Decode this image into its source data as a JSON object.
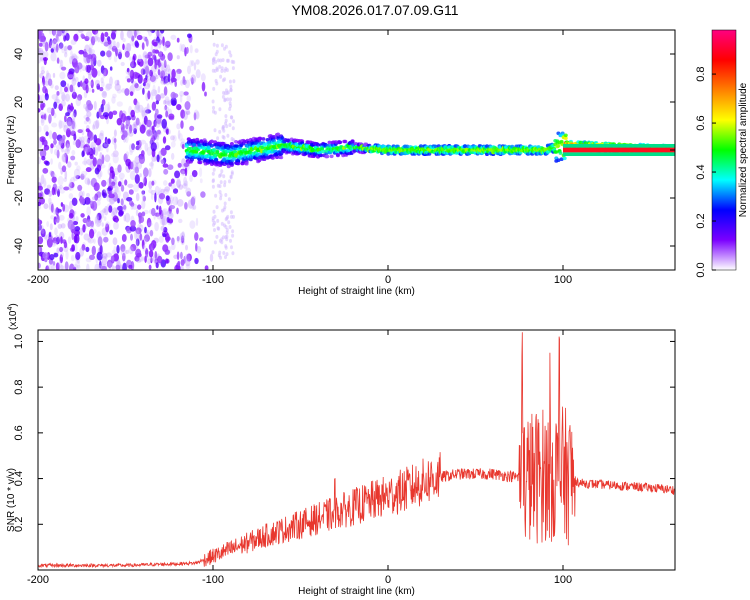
{
  "title": "YM08.2026.017.07.09.G11",
  "colors": {
    "snr_line": "#e8372e",
    "frame": "#000000"
  },
  "chart_data": [
    {
      "type": "heatmap",
      "title": "YM08.2026.017.07.09.G11",
      "xlabel": "Height of straight line (km)",
      "ylabel": "Frequency (Hz)",
      "xlim": [
        -200,
        164
      ],
      "ylim": [
        -50,
        50
      ],
      "xticks": [
        -200,
        -100,
        0,
        100
      ],
      "yticks": [
        -40,
        -20,
        0,
        20,
        40
      ],
      "colorbar": {
        "label": "Normalized spectral amplitude",
        "range": [
          0,
          1
        ],
        "ticks": [
          "0.0",
          "0.2",
          "0.4",
          "0.6",
          "0.8"
        ],
        "colors": [
          "#ffffff",
          "#7b00ff",
          "#0000ff",
          "#00ffff",
          "#00ff00",
          "#ffff00",
          "#ff8000",
          "#ff0000",
          "#ff0080"
        ]
      },
      "description_points": {
        "noise_region_x": [
          -200,
          -100
        ],
        "signal_track": [
          [
            -115,
            0
          ],
          [
            -90,
            -2
          ],
          [
            -60,
            2
          ],
          [
            -40,
            0
          ],
          [
            -20,
            1
          ],
          [
            0,
            0
          ],
          [
            50,
            0
          ],
          [
            90,
            0
          ],
          [
            100,
            2
          ],
          [
            164,
            0
          ]
        ]
      }
    },
    {
      "type": "line",
      "xlabel": "Height of straight line (km)",
      "ylabel": "SNR (10 * v/v)",
      "yscale_label": "(x10",
      "yscale_exp": "4",
      "xlim": [
        -200,
        164
      ],
      "ylim": [
        0,
        1.05
      ],
      "xticks": [
        -200,
        -100,
        0,
        100
      ],
      "yticks": [
        0.2,
        0.4,
        0.6,
        0.8,
        1.0
      ],
      "envelope": [
        [
          -200,
          0.02
        ],
        [
          -150,
          0.02
        ],
        [
          -110,
          0.03
        ],
        [
          -100,
          0.06
        ],
        [
          -90,
          0.09
        ],
        [
          -70,
          0.15
        ],
        [
          -50,
          0.2
        ],
        [
          -30,
          0.25
        ],
        [
          -10,
          0.3
        ],
        [
          10,
          0.35
        ],
        [
          25,
          0.4
        ],
        [
          40,
          0.42
        ],
        [
          60,
          0.42
        ],
        [
          70,
          0.41
        ],
        [
          80,
          0.4
        ],
        [
          90,
          0.42
        ],
        [
          100,
          0.42
        ],
        [
          105,
          0.4
        ],
        [
          110,
          0.38
        ],
        [
          130,
          0.37
        ],
        [
          150,
          0.36
        ],
        [
          164,
          0.35
        ]
      ]
    }
  ]
}
